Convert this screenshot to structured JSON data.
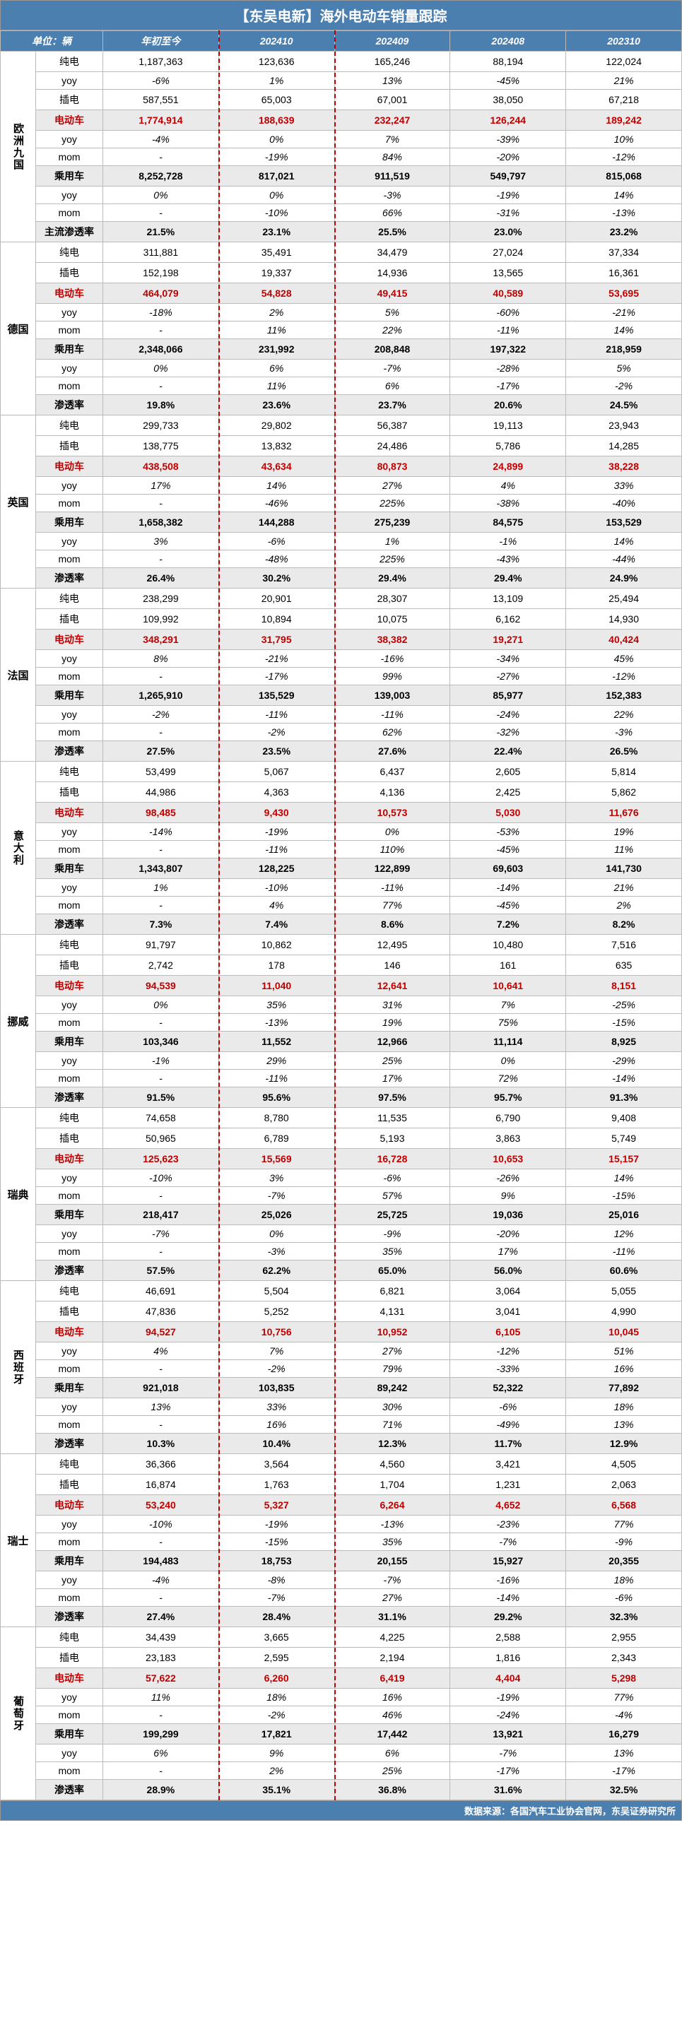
{
  "title": "【东吴电新】海外电动车销量跟踪",
  "unit_label": "单位：辆",
  "columns": [
    "年初至今",
    "202410",
    "202409",
    "202408",
    "202310"
  ],
  "footer": "数据来源：各国汽车工业协会官网，东吴证券研究所",
  "colors": {
    "header_bg": "#4a7fb0",
    "header_fg": "#ffffff",
    "highlight_bg": "#eaeaea",
    "red_text": "#c00000",
    "dash": "#c00000"
  },
  "metrics_order": [
    "纯电",
    "插电",
    "电动车",
    "yoy",
    "mom",
    "乘用车",
    "yoy",
    "mom",
    "渗透率"
  ],
  "first_penetration_label": "主流渗透率",
  "highlight_metrics": [
    "电动车",
    "乘用车",
    "主流渗透率",
    "渗透率"
  ],
  "red_metric": "电动车",
  "regions": [
    {
      "name": "欧洲九国",
      "vertical": true,
      "rows": [
        [
          "纯电",
          "1,187,363",
          "123,636",
          "165,246",
          "88,194",
          "122,024"
        ],
        [
          "yoy",
          "-6%",
          "1%",
          "13%",
          "-45%",
          "21%"
        ],
        [
          "插电",
          "587,551",
          "65,003",
          "67,001",
          "38,050",
          "67,218"
        ],
        [
          "电动车",
          "1,774,914",
          "188,639",
          "232,247",
          "126,244",
          "189,242"
        ],
        [
          "yoy",
          "-4%",
          "0%",
          "7%",
          "-39%",
          "10%"
        ],
        [
          "mom",
          "-",
          "-19%",
          "84%",
          "-20%",
          "-12%"
        ],
        [
          "乘用车",
          "8,252,728",
          "817,021",
          "911,519",
          "549,797",
          "815,068"
        ],
        [
          "yoy",
          "0%",
          "0%",
          "-3%",
          "-19%",
          "14%"
        ],
        [
          "mom",
          "-",
          "-10%",
          "66%",
          "-31%",
          "-13%"
        ],
        [
          "主流渗透率",
          "21.5%",
          "23.1%",
          "25.5%",
          "23.0%",
          "23.2%"
        ]
      ]
    },
    {
      "name": "德国",
      "vertical": false,
      "rows": [
        [
          "纯电",
          "311,881",
          "35,491",
          "34,479",
          "27,024",
          "37,334"
        ],
        [
          "插电",
          "152,198",
          "19,337",
          "14,936",
          "13,565",
          "16,361"
        ],
        [
          "电动车",
          "464,079",
          "54,828",
          "49,415",
          "40,589",
          "53,695"
        ],
        [
          "yoy",
          "-18%",
          "2%",
          "5%",
          "-60%",
          "-21%"
        ],
        [
          "mom",
          "-",
          "11%",
          "22%",
          "-11%",
          "14%"
        ],
        [
          "乘用车",
          "2,348,066",
          "231,992",
          "208,848",
          "197,322",
          "218,959"
        ],
        [
          "yoy",
          "0%",
          "6%",
          "-7%",
          "-28%",
          "5%"
        ],
        [
          "mom",
          "-",
          "11%",
          "6%",
          "-17%",
          "-2%"
        ],
        [
          "渗透率",
          "19.8%",
          "23.6%",
          "23.7%",
          "20.6%",
          "24.5%"
        ]
      ]
    },
    {
      "name": "英国",
      "vertical": false,
      "rows": [
        [
          "纯电",
          "299,733",
          "29,802",
          "56,387",
          "19,113",
          "23,943"
        ],
        [
          "插电",
          "138,775",
          "13,832",
          "24,486",
          "5,786",
          "14,285"
        ],
        [
          "电动车",
          "438,508",
          "43,634",
          "80,873",
          "24,899",
          "38,228"
        ],
        [
          "yoy",
          "17%",
          "14%",
          "27%",
          "4%",
          "33%"
        ],
        [
          "mom",
          "-",
          "-46%",
          "225%",
          "-38%",
          "-40%"
        ],
        [
          "乘用车",
          "1,658,382",
          "144,288",
          "275,239",
          "84,575",
          "153,529"
        ],
        [
          "yoy",
          "3%",
          "-6%",
          "1%",
          "-1%",
          "14%"
        ],
        [
          "mom",
          "-",
          "-48%",
          "225%",
          "-43%",
          "-44%"
        ],
        [
          "渗透率",
          "26.4%",
          "30.2%",
          "29.4%",
          "29.4%",
          "24.9%"
        ]
      ]
    },
    {
      "name": "法国",
      "vertical": false,
      "rows": [
        [
          "纯电",
          "238,299",
          "20,901",
          "28,307",
          "13,109",
          "25,494"
        ],
        [
          "插电",
          "109,992",
          "10,894",
          "10,075",
          "6,162",
          "14,930"
        ],
        [
          "电动车",
          "348,291",
          "31,795",
          "38,382",
          "19,271",
          "40,424"
        ],
        [
          "yoy",
          "8%",
          "-21%",
          "-16%",
          "-34%",
          "45%"
        ],
        [
          "mom",
          "-",
          "-17%",
          "99%",
          "-27%",
          "-12%"
        ],
        [
          "乘用车",
          "1,265,910",
          "135,529",
          "139,003",
          "85,977",
          "152,383"
        ],
        [
          "yoy",
          "-2%",
          "-11%",
          "-11%",
          "-24%",
          "22%"
        ],
        [
          "mom",
          "-",
          "-2%",
          "62%",
          "-32%",
          "-3%"
        ],
        [
          "渗透率",
          "27.5%",
          "23.5%",
          "27.6%",
          "22.4%",
          "26.5%"
        ]
      ]
    },
    {
      "name": "意大利",
      "vertical": true,
      "rows": [
        [
          "纯电",
          "53,499",
          "5,067",
          "6,437",
          "2,605",
          "5,814"
        ],
        [
          "插电",
          "44,986",
          "4,363",
          "4,136",
          "2,425",
          "5,862"
        ],
        [
          "电动车",
          "98,485",
          "9,430",
          "10,573",
          "5,030",
          "11,676"
        ],
        [
          "yoy",
          "-14%",
          "-19%",
          "0%",
          "-53%",
          "19%"
        ],
        [
          "mom",
          "-",
          "-11%",
          "110%",
          "-45%",
          "11%"
        ],
        [
          "乘用车",
          "1,343,807",
          "128,225",
          "122,899",
          "69,603",
          "141,730"
        ],
        [
          "yoy",
          "1%",
          "-10%",
          "-11%",
          "-14%",
          "21%"
        ],
        [
          "mom",
          "-",
          "4%",
          "77%",
          "-45%",
          "2%"
        ],
        [
          "渗透率",
          "7.3%",
          "7.4%",
          "8.6%",
          "7.2%",
          "8.2%"
        ]
      ]
    },
    {
      "name": "挪威",
      "vertical": false,
      "rows": [
        [
          "纯电",
          "91,797",
          "10,862",
          "12,495",
          "10,480",
          "7,516"
        ],
        [
          "插电",
          "2,742",
          "178",
          "146",
          "161",
          "635"
        ],
        [
          "电动车",
          "94,539",
          "11,040",
          "12,641",
          "10,641",
          "8,151"
        ],
        [
          "yoy",
          "0%",
          "35%",
          "31%",
          "7%",
          "-25%"
        ],
        [
          "mom",
          "-",
          "-13%",
          "19%",
          "75%",
          "-15%"
        ],
        [
          "乘用车",
          "103,346",
          "11,552",
          "12,966",
          "11,114",
          "8,925"
        ],
        [
          "yoy",
          "-1%",
          "29%",
          "25%",
          "0%",
          "-29%"
        ],
        [
          "mom",
          "-",
          "-11%",
          "17%",
          "72%",
          "-14%"
        ],
        [
          "渗透率",
          "91.5%",
          "95.6%",
          "97.5%",
          "95.7%",
          "91.3%"
        ]
      ]
    },
    {
      "name": "瑞典",
      "vertical": false,
      "rows": [
        [
          "纯电",
          "74,658",
          "8,780",
          "11,535",
          "6,790",
          "9,408"
        ],
        [
          "插电",
          "50,965",
          "6,789",
          "5,193",
          "3,863",
          "5,749"
        ],
        [
          "电动车",
          "125,623",
          "15,569",
          "16,728",
          "10,653",
          "15,157"
        ],
        [
          "yoy",
          "-10%",
          "3%",
          "-6%",
          "-26%",
          "14%"
        ],
        [
          "mom",
          "-",
          "-7%",
          "57%",
          "9%",
          "-15%"
        ],
        [
          "乘用车",
          "218,417",
          "25,026",
          "25,725",
          "19,036",
          "25,016"
        ],
        [
          "yoy",
          "-7%",
          "0%",
          "-9%",
          "-20%",
          "12%"
        ],
        [
          "mom",
          "-",
          "-3%",
          "35%",
          "17%",
          "-11%"
        ],
        [
          "渗透率",
          "57.5%",
          "62.2%",
          "65.0%",
          "56.0%",
          "60.6%"
        ]
      ]
    },
    {
      "name": "西班牙",
      "vertical": true,
      "rows": [
        [
          "纯电",
          "46,691",
          "5,504",
          "6,821",
          "3,064",
          "5,055"
        ],
        [
          "插电",
          "47,836",
          "5,252",
          "4,131",
          "3,041",
          "4,990"
        ],
        [
          "电动车",
          "94,527",
          "10,756",
          "10,952",
          "6,105",
          "10,045"
        ],
        [
          "yoy",
          "4%",
          "7%",
          "27%",
          "-12%",
          "51%"
        ],
        [
          "mom",
          "-",
          "-2%",
          "79%",
          "-33%",
          "16%"
        ],
        [
          "乘用车",
          "921,018",
          "103,835",
          "89,242",
          "52,322",
          "77,892"
        ],
        [
          "yoy",
          "13%",
          "33%",
          "30%",
          "-6%",
          "18%"
        ],
        [
          "mom",
          "-",
          "16%",
          "71%",
          "-49%",
          "13%"
        ],
        [
          "渗透率",
          "10.3%",
          "10.4%",
          "12.3%",
          "11.7%",
          "12.9%"
        ]
      ]
    },
    {
      "name": "瑞士",
      "vertical": false,
      "rows": [
        [
          "纯电",
          "36,366",
          "3,564",
          "4,560",
          "3,421",
          "4,505"
        ],
        [
          "插电",
          "16,874",
          "1,763",
          "1,704",
          "1,231",
          "2,063"
        ],
        [
          "电动车",
          "53,240",
          "5,327",
          "6,264",
          "4,652",
          "6,568"
        ],
        [
          "yoy",
          "-10%",
          "-19%",
          "-13%",
          "-23%",
          "77%"
        ],
        [
          "mom",
          "-",
          "-15%",
          "35%",
          "-7%",
          "-9%"
        ],
        [
          "乘用车",
          "194,483",
          "18,753",
          "20,155",
          "15,927",
          "20,355"
        ],
        [
          "yoy",
          "-4%",
          "-8%",
          "-7%",
          "-16%",
          "18%"
        ],
        [
          "mom",
          "-",
          "-7%",
          "27%",
          "-14%",
          "-6%"
        ],
        [
          "渗透率",
          "27.4%",
          "28.4%",
          "31.1%",
          "29.2%",
          "32.3%"
        ]
      ]
    },
    {
      "name": "葡萄牙",
      "vertical": true,
      "rows": [
        [
          "纯电",
          "34,439",
          "3,665",
          "4,225",
          "2,588",
          "2,955"
        ],
        [
          "插电",
          "23,183",
          "2,595",
          "2,194",
          "1,816",
          "2,343"
        ],
        [
          "电动车",
          "57,622",
          "6,260",
          "6,419",
          "4,404",
          "5,298"
        ],
        [
          "yoy",
          "11%",
          "18%",
          "16%",
          "-19%",
          "77%"
        ],
        [
          "mom",
          "-",
          "-2%",
          "46%",
          "-24%",
          "-4%"
        ],
        [
          "乘用车",
          "199,299",
          "17,821",
          "17,442",
          "13,921",
          "16,279"
        ],
        [
          "yoy",
          "6%",
          "9%",
          "6%",
          "-7%",
          "13%"
        ],
        [
          "mom",
          "-",
          "2%",
          "25%",
          "-17%",
          "-17%"
        ],
        [
          "渗透率",
          "28.9%",
          "35.1%",
          "36.8%",
          "31.6%",
          "32.5%"
        ]
      ]
    }
  ]
}
